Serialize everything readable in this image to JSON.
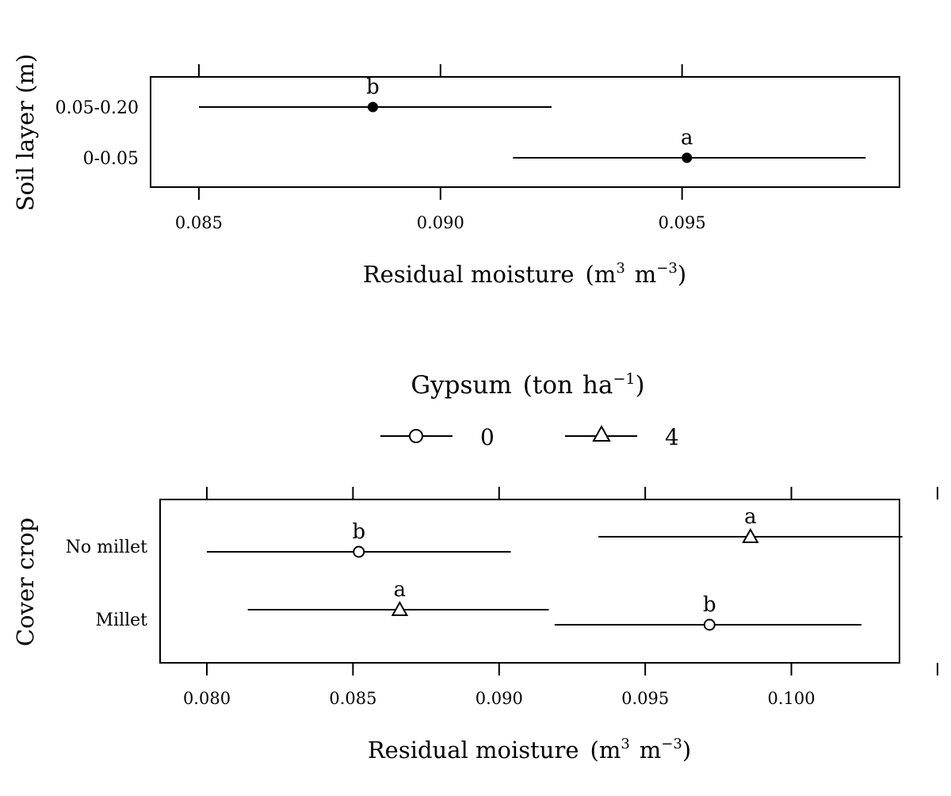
{
  "chart_data": [
    {
      "type": "scatter",
      "subtype": "dot-plot-with-confidence-intervals",
      "xlabel": "Residual moisture",
      "xlabel_unit": {
        "base1": "m",
        "sup1": "3",
        "base2": "m",
        "sup2": "−3"
      },
      "ylabel": "Soil layer (m)",
      "xlim": [
        0.084,
        0.0995
      ],
      "x_ticks": [
        0.085,
        0.09,
        0.095
      ],
      "x_tick_labels": [
        "0.085",
        "0.090",
        "0.095"
      ],
      "categories": [
        "0.05-0.20",
        "0-0.05"
      ],
      "points": [
        {
          "category": "0.05-0.20",
          "estimate": 0.0886,
          "lower": 0.085,
          "upper": 0.0923,
          "letter": "b",
          "marker": "filled-circle"
        },
        {
          "category": "0-0.05",
          "estimate": 0.0951,
          "lower": 0.0915,
          "upper": 0.0988,
          "letter": "a",
          "marker": "filled-circle"
        }
      ],
      "grid": false
    },
    {
      "type": "scatter",
      "subtype": "dot-plot-with-confidence-intervals",
      "xlabel": "Residual moisture",
      "xlabel_unit": {
        "base1": "m",
        "sup1": "3",
        "base2": "m",
        "sup2": "−3"
      },
      "ylabel": "Cover crop",
      "xlim": [
        0.0784,
        0.1037
      ],
      "x_ticks": [
        0.08,
        0.085,
        0.09,
        0.095,
        0.1,
        0.105
      ],
      "x_tick_labels": [
        "0.080",
        "0.085",
        "0.090",
        "0.095",
        "0.100",
        ""
      ],
      "categories": [
        "No millet",
        "Millet"
      ],
      "legend": {
        "title": "Gypsum",
        "title_unit": {
          "base1": "ton",
          "base2": "ha",
          "sup2": "−1"
        },
        "placement": "top",
        "entries": [
          {
            "label": "0",
            "marker": "open-circle"
          },
          {
            "label": "4",
            "marker": "open-triangle"
          }
        ]
      },
      "series": [
        {
          "name": "0",
          "marker": "open-circle",
          "points": [
            {
              "category": "No millet",
              "estimate": 0.0852,
              "lower": 0.08,
              "upper": 0.0904,
              "letter": "b"
            },
            {
              "category": "Millet",
              "estimate": 0.0972,
              "lower": 0.0919,
              "upper": 0.1024,
              "letter": "b"
            }
          ]
        },
        {
          "name": "4",
          "marker": "open-triangle",
          "points": [
            {
              "category": "No millet",
              "estimate": 0.0986,
              "lower": 0.0934,
              "upper": 0.1038,
              "letter": "a"
            },
            {
              "category": "Millet",
              "estimate": 0.0866,
              "lower": 0.0814,
              "upper": 0.0917,
              "letter": "a"
            }
          ]
        }
      ],
      "grid": false
    }
  ]
}
